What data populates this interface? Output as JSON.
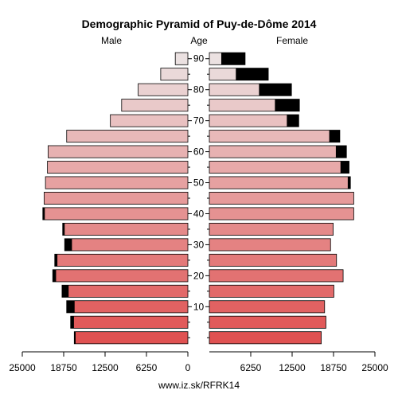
{
  "chart_data": {
    "type": "bar",
    "title": "Demographic Pyramid of Puy-de-Dôme 2014",
    "left_label": "Male",
    "center_label": "Age",
    "right_label": "Female",
    "age_groups": [
      "0-4",
      "5-9",
      "10-14",
      "15-19",
      "20-24",
      "25-29",
      "30-34",
      "35-39",
      "40-44",
      "45-49",
      "50-54",
      "55-59",
      "60-64",
      "65-69",
      "70-74",
      "75-79",
      "80-84",
      "85-89",
      "90+"
    ],
    "age_tick_labels": [
      "10",
      "20",
      "30",
      "40",
      "50",
      "60",
      "70",
      "80",
      "90"
    ],
    "age_tick_groups": [
      2,
      4,
      6,
      8,
      10,
      12,
      14,
      16,
      18
    ],
    "male": {
      "total": [
        17150,
        17700,
        18300,
        19000,
        20400,
        20100,
        18600,
        18900,
        21900,
        21700,
        21500,
        21200,
        21100,
        18300,
        11700,
        10000,
        7500,
        4100,
        1900
      ],
      "excess": [
        200,
        500,
        1200,
        1000,
        500,
        400,
        1100,
        300,
        300,
        0,
        0,
        0,
        0,
        0,
        0,
        0,
        0,
        0,
        0
      ]
    },
    "female": {
      "total": [
        16900,
        17600,
        17400,
        18800,
        20200,
        19200,
        18300,
        18700,
        21800,
        21800,
        21300,
        21100,
        20700,
        19700,
        13500,
        13600,
        12400,
        8900,
        5400
      ],
      "excess": [
        0,
        0,
        0,
        0,
        0,
        0,
        0,
        0,
        0,
        0,
        400,
        1300,
        1600,
        1600,
        1800,
        3700,
        4900,
        4900,
        3600
      ]
    },
    "x_tick_labels": [
      "25000",
      "18750",
      "12500",
      "6250",
      "0",
      "6250",
      "12500",
      "18750",
      "25000"
    ],
    "x_max": 25000,
    "colors": {
      "young": "#e05252",
      "old": "#ebe1e1",
      "excess": "#000000",
      "stroke": "#000000"
    }
  },
  "footer": "www.iz.sk/RFRK14"
}
